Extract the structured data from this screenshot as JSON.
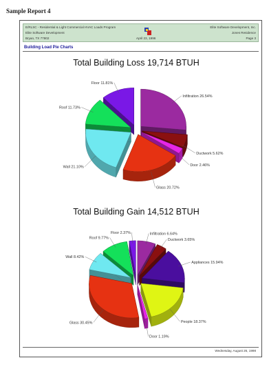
{
  "caption": "Sample Report 4",
  "header": {
    "left_line1": "E/RLSC - Residential & Light Commercial HVAC Loads Program",
    "left_line2": "Elite Software Development",
    "left_line3": "Bryan, TX 77802",
    "center_line3": "April 23, 1996",
    "right_line1": "Elite Software Development, Inc.",
    "right_line2": "Jones Residence",
    "right_line3": "Page 3"
  },
  "section_title": "Building Load Pie Charts",
  "footer_date": "Wednesday, August 26, 1998",
  "chart_data": [
    {
      "type": "pie",
      "title": "Total Building Loss 19,714 BTUH",
      "slices": [
        {
          "label": "Infiltration",
          "value": 26.54,
          "color": "#9b2aa0"
        },
        {
          "label": "Ductwork",
          "value": 5.62,
          "color": "#8a1010"
        },
        {
          "label": "Door",
          "value": 2.46,
          "color": "#e626e6"
        },
        {
          "label": "Glass",
          "value": 20.72,
          "color": "#e63212"
        },
        {
          "label": "Wall",
          "value": 21.1,
          "color": "#6fe8f0"
        },
        {
          "label": "Roof",
          "value": 11.73,
          "color": "#14e05a"
        },
        {
          "label": "Floor",
          "value": 11.81,
          "color": "#7a18e6"
        }
      ]
    },
    {
      "type": "pie",
      "title": "Total Building Gain 14,512 BTUH",
      "slices": [
        {
          "label": "Infiltration",
          "value": 6.64,
          "color": "#9b2aa0"
        },
        {
          "label": "Ductwork",
          "value": 3.65,
          "color": "#8a1010"
        },
        {
          "label": "Appliances",
          "value": 15.94,
          "color": "#4a0e9e"
        },
        {
          "label": "People",
          "value": 18.37,
          "color": "#dff514"
        },
        {
          "label": "Door",
          "value": 1.19,
          "color": "#e626e6"
        },
        {
          "label": "Glass",
          "value": 30.45,
          "color": "#e63212"
        },
        {
          "label": "Wall",
          "value": 8.42,
          "color": "#6fe8f0"
        },
        {
          "label": "Roof",
          "value": 9.77,
          "color": "#14e05a"
        },
        {
          "label": "Floor",
          "value": 2.37,
          "color": "#7a18e6"
        }
      ]
    }
  ]
}
